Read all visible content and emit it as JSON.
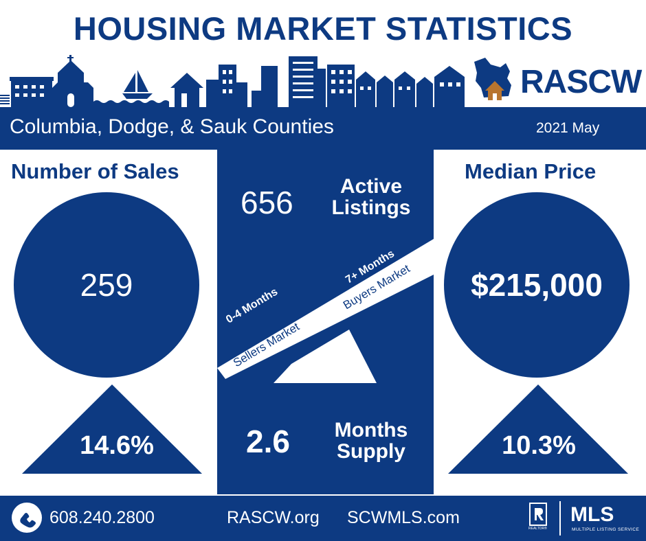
{
  "title": "HOUSING MARKET STATISTICS",
  "logo": {
    "text": "RASCW",
    "icon": "wisconsin-house-icon"
  },
  "banner": {
    "region": "Columbia, Dodge, & Sauk Counties",
    "date": "2021 May"
  },
  "sales": {
    "title": "Number of Sales",
    "value": "259",
    "change": "14.6%"
  },
  "listings": {
    "value": "656",
    "label_line1": "Active",
    "label_line2": "Listings"
  },
  "scale": {
    "left_top": "0-4 Months",
    "left_bottom": "Sellers Market",
    "right_top": "7+ Months",
    "right_bottom": "Buyers Market"
  },
  "supply": {
    "value": "2.6",
    "label_line1": "Months",
    "label_line2": "Supply"
  },
  "median": {
    "title": "Median Price",
    "value": "$215,000",
    "change": "10.3%"
  },
  "footer": {
    "phone": "608.240.2800",
    "site1": "RASCW.org",
    "site2": "SCWMLS.com",
    "mls": "MLS",
    "mls_sub": "MULTIPLE LISTING SERVICE",
    "realtor_sub": "REALTOR®"
  },
  "colors": {
    "navy": "#0d3a82",
    "white": "#ffffff",
    "house": "#b8752f"
  }
}
